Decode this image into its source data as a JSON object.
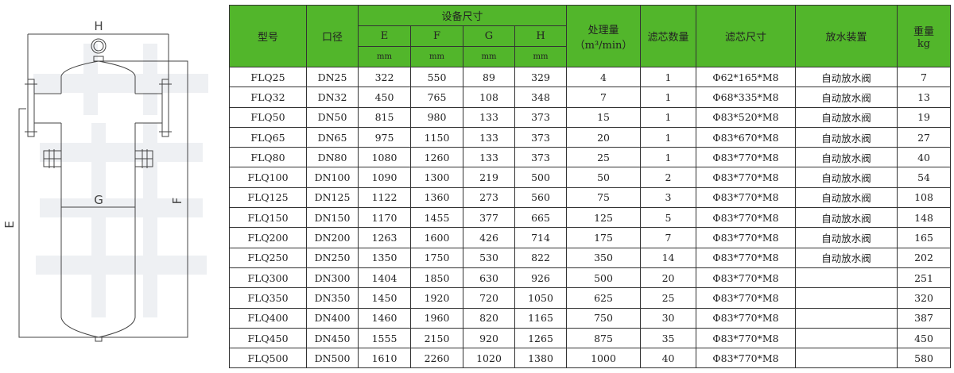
{
  "drawing": {
    "labels": {
      "H": "H",
      "G": "G",
      "E": "E",
      "F": "F"
    }
  },
  "table": {
    "headers": {
      "model": "型号",
      "bore": "口径",
      "dimensions": "设备尺寸",
      "dim_cols": [
        "E",
        "F",
        "G",
        "H"
      ],
      "dim_unit": "mm",
      "flow": "处理量",
      "flow_unit": "（m³/min）",
      "element_count": "滤芯数量",
      "element_size": "滤芯尺寸",
      "drain": "放水装置",
      "weight": "重量",
      "weight_unit": "kg"
    },
    "header_color": "#52b62b",
    "rows": [
      [
        "FLQ25",
        "DN25",
        "322",
        "550",
        "89",
        "329",
        "4",
        "1",
        "Φ62*165*M8",
        "自动放水阀",
        "7"
      ],
      [
        "FLQ32",
        "DN32",
        "450",
        "765",
        "108",
        "348",
        "7",
        "1",
        "Φ68*335*M8",
        "自动放水阀",
        "13"
      ],
      [
        "FLQ50",
        "DN50",
        "815",
        "980",
        "133",
        "373",
        "15",
        "1",
        "Φ83*520*M8",
        "自动放水阀",
        "19"
      ],
      [
        "FLQ65",
        "DN65",
        "975",
        "1150",
        "133",
        "373",
        "20",
        "1",
        "Φ83*670*M8",
        "自动放水阀",
        "27"
      ],
      [
        "FLQ80",
        "DN80",
        "1080",
        "1260",
        "133",
        "373",
        "25",
        "1",
        "Φ83*770*M8",
        "自动放水阀",
        "40"
      ],
      [
        "FLQ100",
        "DN100",
        "1090",
        "1300",
        "219",
        "500",
        "50",
        "2",
        "Φ83*770*M8",
        "自动放水阀",
        "54"
      ],
      [
        "FLQ125",
        "DN125",
        "1122",
        "1360",
        "273",
        "560",
        "75",
        "3",
        "Φ83*770*M8",
        "自动放水阀",
        "108"
      ],
      [
        "FLQ150",
        "DN150",
        "1170",
        "1455",
        "377",
        "665",
        "125",
        "5",
        "Φ83*770*M8",
        "自动放水阀",
        "148"
      ],
      [
        "FLQ200",
        "DN200",
        "1263",
        "1600",
        "426",
        "714",
        "175",
        "7",
        "Φ83*770*M8",
        "自动放水阀",
        "165"
      ],
      [
        "FLQ250",
        "DN250",
        "1350",
        "1750",
        "530",
        "822",
        "350",
        "14",
        "Φ83*770*M8",
        "自动放水阀",
        "202"
      ],
      [
        "FLQ300",
        "DN300",
        "1404",
        "1850",
        "630",
        "926",
        "500",
        "20",
        "Φ83*770*M8",
        "",
        "251"
      ],
      [
        "FLQ350",
        "DN350",
        "1450",
        "1920",
        "720",
        "1050",
        "625",
        "25",
        "Φ83*770*M8",
        "",
        "320"
      ],
      [
        "FLQ400",
        "DN400",
        "1460",
        "1960",
        "820",
        "1165",
        "750",
        "30",
        "Φ83*770*M8",
        "",
        "387"
      ],
      [
        "FLQ450",
        "DN450",
        "1555",
        "2150",
        "920",
        "1265",
        "875",
        "35",
        "Φ83*770*M8",
        "",
        "450"
      ],
      [
        "FLQ500",
        "DN500",
        "1610",
        "2260",
        "1020",
        "1380",
        "1000",
        "40",
        "Φ83*770*M8",
        "",
        "580"
      ]
    ]
  }
}
